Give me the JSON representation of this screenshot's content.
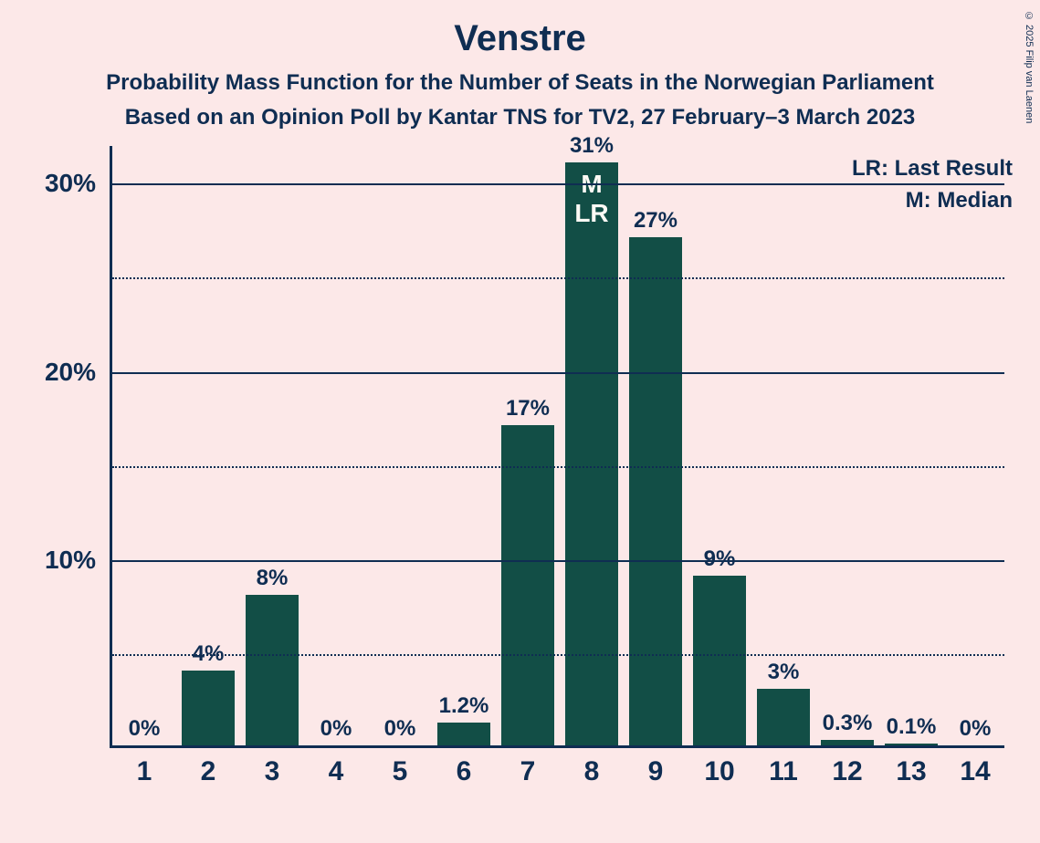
{
  "title": "Venstre",
  "subtitle1": "Probability Mass Function for the Number of Seats in the Norwegian Parliament",
  "subtitle2": "Based on an Opinion Poll by Kantar TNS for TV2, 27 February–3 March 2023",
  "copyright": "© 2025 Filip van Laenen",
  "legend": {
    "lr": "LR: Last Result",
    "m": "M: Median"
  },
  "chart": {
    "type": "bar",
    "background_color": "#fce8e8",
    "bar_color": "#124e46",
    "text_color": "#0f2d52",
    "axis_color": "#0f2d52",
    "grid_color": "#0f2d52",
    "title_fontsize": 40,
    "subtitle_fontsize": 24,
    "label_fontsize": 24,
    "axis_tick_fontsize": 28,
    "x_tick_fontsize": 30,
    "bar_inner_fontsize": 28,
    "bar_width_ratio": 0.82,
    "y_axis": {
      "min": 0,
      "max": 32,
      "major_ticks": [
        10,
        20,
        30
      ],
      "minor_ticks": [
        5,
        15,
        25
      ],
      "major_labels": [
        "10%",
        "20%",
        "30%"
      ]
    },
    "categories": [
      "1",
      "2",
      "3",
      "4",
      "5",
      "6",
      "7",
      "8",
      "9",
      "10",
      "11",
      "12",
      "13",
      "14"
    ],
    "values": [
      0,
      4,
      8,
      0,
      0,
      1.2,
      17,
      31,
      27,
      9,
      3,
      0.3,
      0.1,
      0
    ],
    "value_labels": [
      "0%",
      "4%",
      "8%",
      "0%",
      "0%",
      "1.2%",
      "17%",
      "31%",
      "27%",
      "9%",
      "3%",
      "0.3%",
      "0.1%",
      "0%"
    ],
    "median_index": 7,
    "last_result_index": 7,
    "inner_labels": {
      "7": "M\nLR"
    }
  }
}
